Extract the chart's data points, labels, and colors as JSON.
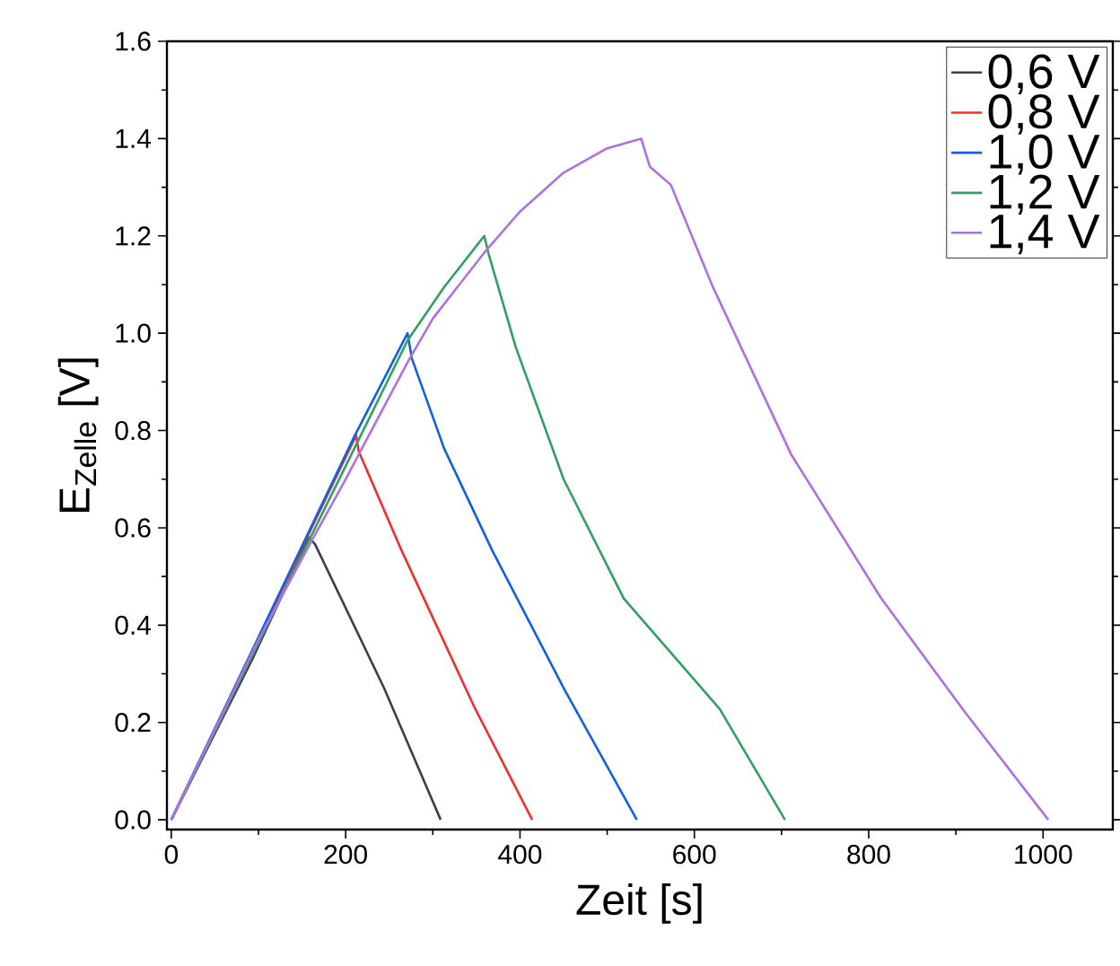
{
  "chart_data": {
    "type": "line",
    "xlabel": "Zeit [s]",
    "ylabel": "E$_{Zelle}$ [V]",
    "xlim": [
      -5,
      1080
    ],
    "ylim": [
      -0.02,
      1.6
    ],
    "xticks": [
      0,
      200,
      400,
      600,
      800,
      1000
    ],
    "yticks": [
      {
        "value": 0,
        "label": "0.0"
      },
      {
        "value": 0.2,
        "label": "0.2"
      },
      {
        "value": 0.4,
        "label": "0.4"
      },
      {
        "value": 0.6,
        "label": "0.6"
      },
      {
        "value": 0.8,
        "label": "0.8"
      },
      {
        "value": 1.0,
        "label": "1.0"
      },
      {
        "value": 1.2,
        "label": "1.2"
      },
      {
        "value": 1.4,
        "label": "1.4"
      },
      {
        "value": 1.6,
        "label": "1.6"
      }
    ],
    "legend": "top right",
    "grid": false,
    "marker": "none",
    "line_style": "solid",
    "series": [
      {
        "name": "0,6 V",
        "color": "#404040",
        "x": [
          0,
          93,
          158,
          165,
          244,
          309
        ],
        "values": [
          0,
          0.33,
          0.58,
          0.566,
          0.271,
          0
        ]
      },
      {
        "name": "0,8 V",
        "color": "#f03030",
        "x": [
          0,
          212,
          215,
          264,
          347,
          414
        ],
        "values": [
          0,
          0.79,
          0.757,
          0.554,
          0.234,
          0
        ]
      },
      {
        "name": "1,0 V",
        "color": "#1060e0",
        "x": [
          0,
          210,
          271,
          276,
          313,
          368,
          450,
          534
        ],
        "values": [
          0,
          0.788,
          1.0,
          0.948,
          0.763,
          0.554,
          0.271,
          0
        ]
      },
      {
        "name": "1,2 V",
        "color": "#30a060",
        "x": [
          0,
          271,
          313,
          359,
          364,
          395,
          450,
          519,
          629,
          704
        ],
        "values": [
          0,
          0.985,
          1.095,
          1.2,
          1.163,
          0.972,
          0.7,
          0.455,
          0.228,
          0
        ]
      },
      {
        "name": "1,4 V",
        "color": "#b070e0",
        "x": [
          0,
          100,
          160,
          200,
          271,
          300,
          361,
          400,
          450,
          500,
          539,
          549,
          573,
          621,
          711,
          814,
          910,
          1006
        ],
        "values": [
          0,
          0.37,
          0.57,
          0.7,
          0.94,
          1.03,
          1.17,
          1.25,
          1.33,
          1.38,
          1.4,
          1.342,
          1.305,
          1.096,
          0.751,
          0.456,
          0.222,
          0
        ]
      }
    ]
  }
}
